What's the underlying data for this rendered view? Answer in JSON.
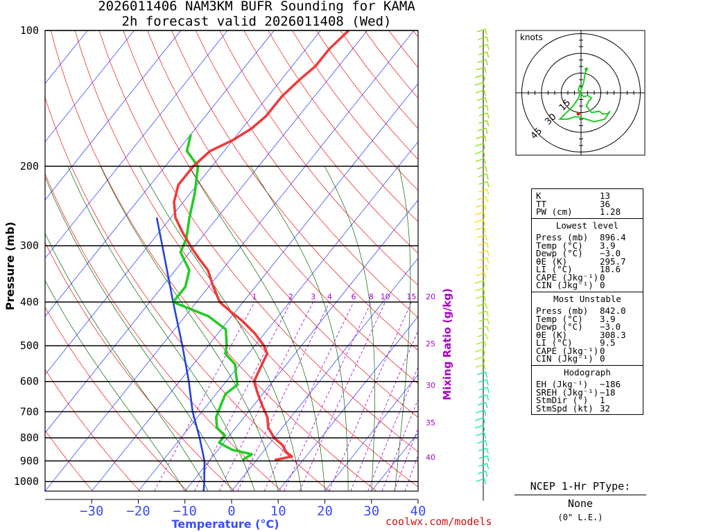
{
  "title": {
    "line1": "2026011406 NAM3KM BUFR Sounding for KAMA",
    "line2": "2h forecast valid 2026011408 (Wed)"
  },
  "colors": {
    "temperature": "#ee3b3b",
    "dewpoint": "#22cc22",
    "parcel": "#2244dd",
    "isotherm": "#3b4cff",
    "dry_adiabat": "#ee1111",
    "moist_adiabat": "#006400",
    "mixing_ratio": "#aa00cc",
    "credit": "#cc1111"
  },
  "chart_data": {
    "type": "skew-t",
    "xlabel": "Temperature (°C)",
    "ylabel": "Pressure (mb)",
    "right_label": "Mixing Ratio (g/kg)",
    "pressure_ticks": [
      "100",
      "200",
      "300",
      "400",
      "500",
      "600",
      "700",
      "800",
      "900",
      "1000"
    ],
    "temperature_ticks": [
      "−30",
      "−20",
      "−10",
      "0",
      "10",
      "20",
      "30",
      "40"
    ],
    "mixing_ratio_labels": [
      "1",
      "2",
      "3",
      "4",
      "6",
      "8",
      "10",
      "15",
      "20",
      "25",
      "30",
      "35",
      "40"
    ],
    "temperature_profile": [
      {
        "p": 896,
        "t": 3.9
      },
      {
        "p": 880,
        "t": 7
      },
      {
        "p": 860,
        "t": 5
      },
      {
        "p": 830,
        "t": 3
      },
      {
        "p": 800,
        "t": 0
      },
      {
        "p": 760,
        "t": -3
      },
      {
        "p": 720,
        "t": -5
      },
      {
        "p": 680,
        "t": -8
      },
      {
        "p": 640,
        "t": -11
      },
      {
        "p": 600,
        "t": -14
      },
      {
        "p": 560,
        "t": -15
      },
      {
        "p": 520,
        "t": -16
      },
      {
        "p": 500,
        "t": -18
      },
      {
        "p": 470,
        "t": -22
      },
      {
        "p": 440,
        "t": -27
      },
      {
        "p": 420,
        "t": -31
      },
      {
        "p": 400,
        "t": -35
      },
      {
        "p": 370,
        "t": -39
      },
      {
        "p": 340,
        "t": -43
      },
      {
        "p": 320,
        "t": -47
      },
      {
        "p": 300,
        "t": -51
      },
      {
        "p": 280,
        "t": -55
      },
      {
        "p": 260,
        "t": -59
      },
      {
        "p": 240,
        "t": -62
      },
      {
        "p": 220,
        "t": -64
      },
      {
        "p": 200,
        "t": -64
      },
      {
        "p": 185,
        "t": -63
      },
      {
        "p": 175,
        "t": -60
      },
      {
        "p": 165,
        "t": -58
      },
      {
        "p": 155,
        "t": -57
      },
      {
        "p": 140,
        "t": -57
      },
      {
        "p": 128,
        "t": -56
      },
      {
        "p": 120,
        "t": -55
      },
      {
        "p": 110,
        "t": -55
      },
      {
        "p": 100,
        "t": -54
      }
    ],
    "dewpoint_profile": [
      {
        "p": 896,
        "t": -3.0
      },
      {
        "p": 870,
        "t": -2
      },
      {
        "p": 850,
        "t": -7
      },
      {
        "p": 820,
        "t": -11
      },
      {
        "p": 790,
        "t": -11
      },
      {
        "p": 760,
        "t": -14
      },
      {
        "p": 720,
        "t": -16
      },
      {
        "p": 680,
        "t": -17
      },
      {
        "p": 640,
        "t": -18
      },
      {
        "p": 610,
        "t": -17
      },
      {
        "p": 580,
        "t": -19
      },
      {
        "p": 550,
        "t": -21
      },
      {
        "p": 520,
        "t": -25
      },
      {
        "p": 500,
        "t": -26
      },
      {
        "p": 460,
        "t": -29
      },
      {
        "p": 430,
        "t": -35
      },
      {
        "p": 400,
        "t": -45
      },
      {
        "p": 370,
        "t": -45
      },
      {
        "p": 340,
        "t": -47
      },
      {
        "p": 310,
        "t": -52
      },
      {
        "p": 290,
        "t": -53
      },
      {
        "p": 260,
        "t": -56
      },
      {
        "p": 230,
        "t": -59
      },
      {
        "p": 200,
        "t": -63
      },
      {
        "p": 185,
        "t": -68
      },
      {
        "p": 170,
        "t": -70
      }
    ],
    "parcel_profile": [
      {
        "p": 1050,
        "t": -6
      },
      {
        "p": 1000,
        "t": -7.5
      },
      {
        "p": 900,
        "t": -11
      },
      {
        "p": 800,
        "t": -16
      },
      {
        "p": 700,
        "t": -22
      },
      {
        "p": 600,
        "t": -28
      },
      {
        "p": 500,
        "t": -35.5
      },
      {
        "p": 400,
        "t": -45
      },
      {
        "p": 300,
        "t": -57
      },
      {
        "p": 260,
        "t": -63
      }
    ],
    "hodograph": {
      "units": "knots",
      "ring_labels": [
        "15",
        "30",
        "45"
      ],
      "points": [
        [
          -1,
          -6
        ],
        [
          -2,
          -2
        ],
        [
          2,
          3
        ],
        [
          5,
          2
        ],
        [
          8,
          4
        ],
        [
          6,
          6
        ],
        [
          4,
          10
        ],
        [
          8,
          15
        ],
        [
          14,
          14
        ],
        [
          16,
          16
        ],
        [
          20,
          16
        ],
        [
          22,
          14
        ],
        [
          18,
          20
        ],
        [
          10,
          22
        ],
        [
          4,
          20
        ],
        [
          -4,
          18
        ],
        [
          -10,
          20
        ],
        [
          -16,
          20
        ],
        [
          -12,
          16
        ],
        [
          -6,
          10
        ],
        [
          -2,
          4
        ],
        [
          0,
          -2
        ],
        [
          2,
          -8
        ],
        [
          3,
          -14
        ],
        [
          4,
          -18
        ]
      ]
    }
  },
  "panel": {
    "top": [
      {
        "label": "K",
        "value": "13"
      },
      {
        "label": "TT",
        "value": "36"
      },
      {
        "label": "PW (cm)",
        "value": "1.28"
      }
    ],
    "lowest": {
      "header": "Lowest level",
      "rows": [
        {
          "label": "Press (mb)",
          "value": "896.4"
        },
        {
          "label": "Temp (°C)",
          "value": "3.9"
        },
        {
          "label": "Dewp (°C)",
          "value": "−3.0"
        },
        {
          "label": "θE (K)",
          "value": "295.7"
        },
        {
          "label": "LI (°C)",
          "value": "18.6"
        },
        {
          "label": "CAPE (Jkg⁻¹)",
          "value": "0"
        },
        {
          "label": "CIN (Jkg⁻¹)",
          "value": "0"
        }
      ]
    },
    "unstable": {
      "header": "Most Unstable",
      "rows": [
        {
          "label": "Press (mb)",
          "value": "842.0"
        },
        {
          "label": "Temp (°C)",
          "value": "3.9"
        },
        {
          "label": "Dewp (°C)",
          "value": "−3.0"
        },
        {
          "label": "θE (K)",
          "value": "308.3"
        },
        {
          "label": "LI (°C)",
          "value": "9.5"
        },
        {
          "label": "CAPE (Jkg⁻¹)",
          "value": "0"
        },
        {
          "label": "CIN (Jkg⁻¹)",
          "value": "0"
        }
      ]
    },
    "hodo": {
      "header": "Hodograph",
      "rows": [
        {
          "label": "EH (Jkg⁻¹)",
          "value": "−186"
        },
        {
          "label": "SREH (Jkg⁻¹)",
          "value": "−18"
        },
        {
          "label": "StmDir (°)",
          "value": "1"
        },
        {
          "label": "StmSpd (kt)",
          "value": "32"
        }
      ]
    }
  },
  "ptype": {
    "title": "NCEP 1-Hr PType:",
    "value": "None",
    "detail": "(0\" L.E.)"
  },
  "credit": "coolwx.com/models"
}
